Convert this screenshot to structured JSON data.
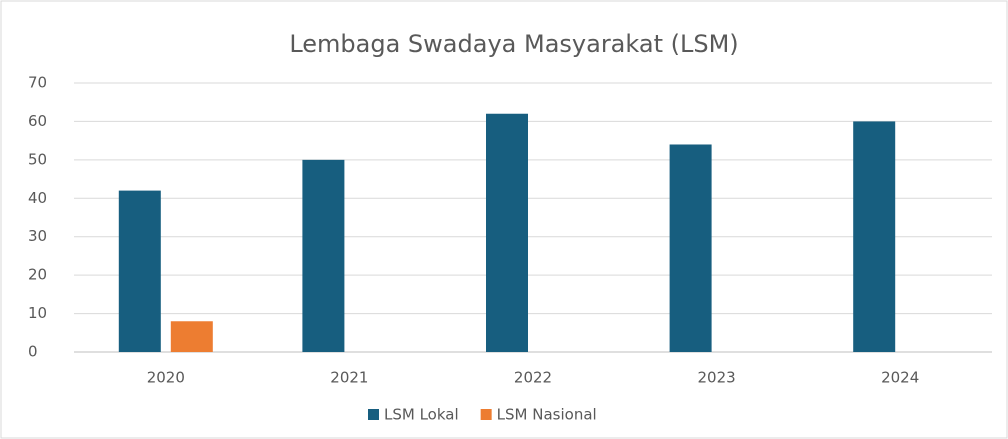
{
  "chart_data": {
    "type": "bar",
    "title": "Lembaga Swadaya Masyarakat (LSM)",
    "categories": [
      "2020",
      "2021",
      "2022",
      "2023",
      "2024"
    ],
    "series": [
      {
        "name": "LSM Lokal",
        "color": "#175e7f",
        "values": [
          42,
          50,
          62,
          54,
          60
        ]
      },
      {
        "name": "LSM Nasional",
        "color": "#ed7d31",
        "values": [
          8,
          null,
          null,
          null,
          null
        ]
      }
    ],
    "ylim": [
      0,
      70
    ],
    "yticks": [
      0,
      10,
      20,
      30,
      40,
      50,
      60,
      70
    ],
    "grid": true,
    "legend": "bottom"
  }
}
